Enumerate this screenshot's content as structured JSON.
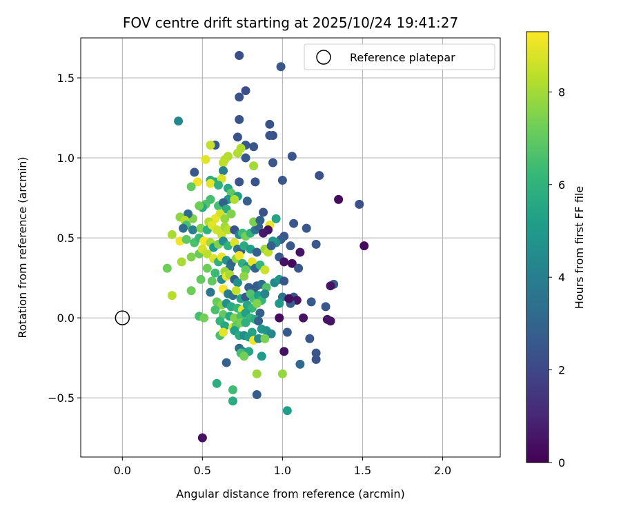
{
  "chart_data": {
    "type": "scatter",
    "title": "FOV centre drift starting at 2025/10/24 19:41:27",
    "xlabel": "Angular distance from reference (arcmin)",
    "ylabel": "Rotation from reference (arcmin)",
    "xlim": [
      -0.26,
      2.36
    ],
    "ylim": [
      -0.87,
      1.75
    ],
    "xticks": [
      0.0,
      0.5,
      1.0,
      1.5,
      2.0
    ],
    "xtick_labels": [
      "0.0",
      "0.5",
      "1.0",
      "1.5",
      "2.0"
    ],
    "yticks": [
      -0.5,
      0.0,
      0.5,
      1.0,
      1.5
    ],
    "ytick_labels": [
      "−0.5",
      "0.0",
      "0.5",
      "1.0",
      "1.5"
    ],
    "grid": true,
    "legend": {
      "position": "top-right",
      "label": "Reference platepar"
    },
    "reference_point": {
      "x": 0.0,
      "y": 0.0
    },
    "colorbar": {
      "label": "Hours from first FF file",
      "colormap": "viridis",
      "range": [
        0,
        9.3
      ],
      "ticks": [
        0,
        2,
        4,
        6,
        8
      ],
      "tick_labels": [
        "0",
        "2",
        "4",
        "6",
        "8"
      ]
    },
    "points": [
      [
        0.73,
        1.64,
        2.2
      ],
      [
        0.99,
        1.57,
        2.5
      ],
      [
        0.77,
        1.42,
        2.2
      ],
      [
        0.73,
        1.38,
        2.4
      ],
      [
        0.92,
        1.21,
        2.3
      ],
      [
        0.94,
        1.14,
        2.3
      ],
      [
        0.73,
        1.24,
        2.4
      ],
      [
        0.35,
        1.23,
        4.4
      ],
      [
        0.72,
        1.13,
        2.4
      ],
      [
        0.58,
        1.08,
        2.6
      ],
      [
        0.55,
        1.08,
        8.5
      ],
      [
        0.77,
        1.08,
        2.6
      ],
      [
        0.82,
        1.07,
        2.5
      ],
      [
        0.74,
        1.06,
        8.2
      ],
      [
        0.92,
        1.14,
        2.5
      ],
      [
        1.06,
        1.01,
        2.4
      ],
      [
        0.72,
        1.03,
        8.2
      ],
      [
        0.66,
        1.01,
        8.2
      ],
      [
        0.77,
        1.0,
        2.6
      ],
      [
        0.64,
        0.99,
        8.3
      ],
      [
        0.52,
        0.99,
        8.9
      ],
      [
        0.63,
        0.97,
        8.4
      ],
      [
        0.82,
        0.95,
        8.0
      ],
      [
        0.94,
        0.97,
        2.5
      ],
      [
        0.45,
        0.91,
        2.5
      ],
      [
        0.63,
        0.92,
        4.0
      ],
      [
        1.23,
        0.89,
        2.3
      ],
      [
        0.55,
        0.86,
        5.6
      ],
      [
        0.58,
        0.85,
        5.8
      ],
      [
        0.62,
        0.87,
        8.8
      ],
      [
        0.73,
        0.85,
        2.4
      ],
      [
        0.83,
        0.85,
        2.4
      ],
      [
        1.0,
        0.86,
        2.5
      ],
      [
        0.47,
        0.85,
        9.1
      ],
      [
        0.43,
        0.82,
        7.0
      ],
      [
        0.55,
        0.84,
        8.9
      ],
      [
        0.6,
        0.83,
        5.9
      ],
      [
        0.66,
        0.81,
        5.6
      ],
      [
        0.68,
        0.78,
        6.9
      ],
      [
        0.72,
        0.76,
        5.2
      ],
      [
        0.78,
        0.73,
        2.8
      ],
      [
        0.66,
        0.74,
        4.8
      ],
      [
        0.7,
        0.74,
        8.2
      ],
      [
        0.52,
        0.71,
        6.7
      ],
      [
        0.55,
        0.74,
        6.5
      ],
      [
        0.5,
        0.69,
        5.6
      ],
      [
        0.48,
        0.7,
        7.2
      ],
      [
        0.6,
        0.7,
        6.5
      ],
      [
        0.63,
        0.72,
        2.9
      ],
      [
        0.65,
        0.68,
        5.8
      ],
      [
        1.35,
        0.74,
        0.3
      ],
      [
        1.48,
        0.71,
        2.3
      ],
      [
        0.88,
        0.66,
        2.3
      ],
      [
        0.96,
        0.62,
        5.4
      ],
      [
        0.61,
        0.65,
        8.7
      ],
      [
        0.64,
        0.62,
        7.8
      ],
      [
        0.68,
        0.65,
        7.5
      ],
      [
        0.58,
        0.62,
        9.0
      ],
      [
        0.54,
        0.6,
        8.2
      ],
      [
        0.44,
        0.62,
        7.5
      ],
      [
        0.41,
        0.65,
        3.3
      ],
      [
        0.36,
        0.63,
        7.7
      ],
      [
        0.39,
        0.61,
        8.3
      ],
      [
        0.4,
        0.58,
        6.6
      ],
      [
        0.38,
        0.56,
        3.3
      ],
      [
        0.44,
        0.55,
        4.1
      ],
      [
        0.49,
        0.56,
        7.5
      ],
      [
        0.53,
        0.55,
        6.0
      ],
      [
        0.56,
        0.58,
        8.9
      ],
      [
        0.59,
        0.55,
        8.6
      ],
      [
        0.62,
        0.52,
        8.6
      ],
      [
        0.64,
        0.57,
        8.0
      ],
      [
        0.66,
        0.55,
        8.3
      ],
      [
        0.7,
        0.55,
        2.4
      ],
      [
        0.73,
        0.52,
        4.2
      ],
      [
        0.75,
        0.53,
        6.3
      ],
      [
        0.77,
        0.51,
        7.3
      ],
      [
        0.8,
        0.53,
        6.0
      ],
      [
        0.83,
        0.55,
        3.6
      ],
      [
        0.85,
        0.57,
        2.9
      ],
      [
        0.82,
        0.6,
        7.4
      ],
      [
        0.86,
        0.61,
        2.9
      ],
      [
        0.92,
        0.58,
        9.0
      ],
      [
        0.91,
        0.55,
        0.4
      ],
      [
        0.88,
        0.53,
        0.6
      ],
      [
        1.07,
        0.59,
        2.5
      ],
      [
        1.15,
        0.56,
        2.5
      ],
      [
        1.01,
        0.51,
        2.5
      ],
      [
        0.99,
        0.49,
        2.8
      ],
      [
        0.96,
        0.47,
        4.5
      ],
      [
        0.94,
        0.48,
        5.0
      ],
      [
        1.05,
        0.45,
        2.6
      ],
      [
        1.21,
        0.46,
        2.5
      ],
      [
        1.51,
        0.45,
        0.3
      ],
      [
        0.31,
        0.52,
        8.1
      ],
      [
        0.36,
        0.48,
        9.1
      ],
      [
        0.4,
        0.49,
        6.9
      ],
      [
        0.45,
        0.47,
        6.6
      ],
      [
        0.48,
        0.5,
        6.2
      ],
      [
        0.51,
        0.48,
        9.2
      ],
      [
        0.55,
        0.47,
        8.1
      ],
      [
        0.57,
        0.44,
        5.1
      ],
      [
        0.6,
        0.46,
        7.4
      ],
      [
        0.63,
        0.48,
        4.5
      ],
      [
        0.66,
        0.45,
        6.0
      ],
      [
        0.7,
        0.47,
        8.8
      ],
      [
        0.72,
        0.43,
        3.7
      ],
      [
        0.74,
        0.42,
        2.9
      ],
      [
        0.76,
        0.45,
        5.7
      ],
      [
        0.8,
        0.43,
        5.2
      ],
      [
        0.84,
        0.41,
        2.9
      ],
      [
        0.89,
        0.43,
        7.9
      ],
      [
        0.91,
        0.41,
        8.4
      ],
      [
        0.93,
        0.45,
        2.8
      ],
      [
        0.98,
        0.38,
        2.5
      ],
      [
        1.01,
        0.35,
        0.4
      ],
      [
        1.06,
        0.34,
        0.2
      ],
      [
        1.1,
        0.31,
        2.5
      ],
      [
        1.11,
        0.41,
        0.5
      ],
      [
        0.28,
        0.31,
        7.2
      ],
      [
        0.37,
        0.35,
        8.1
      ],
      [
        0.43,
        0.38,
        7.5
      ],
      [
        0.48,
        0.4,
        7.1
      ],
      [
        0.5,
        0.43,
        8.7
      ],
      [
        0.53,
        0.4,
        8.4
      ],
      [
        0.57,
        0.37,
        8.8
      ],
      [
        0.6,
        0.35,
        6.0
      ],
      [
        0.62,
        0.38,
        9.0
      ],
      [
        0.65,
        0.36,
        4.9
      ],
      [
        0.68,
        0.34,
        2.9
      ],
      [
        0.71,
        0.37,
        7.7
      ],
      [
        0.73,
        0.39,
        9.1
      ],
      [
        0.75,
        0.34,
        5.9
      ],
      [
        0.78,
        0.32,
        4.6
      ],
      [
        0.81,
        0.35,
        9.0
      ],
      [
        0.83,
        0.31,
        3.0
      ],
      [
        0.86,
        0.33,
        6.2
      ],
      [
        0.89,
        0.3,
        8.6
      ],
      [
        0.77,
        0.3,
        7.0
      ],
      [
        0.67,
        0.31,
        3.2
      ],
      [
        0.64,
        0.29,
        7.8
      ],
      [
        0.58,
        0.28,
        6.3
      ],
      [
        0.53,
        0.31,
        7.2
      ],
      [
        0.49,
        0.24,
        7.0
      ],
      [
        0.56,
        0.23,
        7.0
      ],
      [
        0.62,
        0.24,
        4.5
      ],
      [
        0.65,
        0.26,
        8.9
      ],
      [
        0.67,
        0.27,
        8.1
      ],
      [
        0.7,
        0.24,
        2.6
      ],
      [
        0.72,
        0.22,
        4.7
      ],
      [
        0.76,
        0.26,
        7.7
      ],
      [
        0.79,
        0.19,
        2.8
      ],
      [
        0.82,
        0.18,
        2.5
      ],
      [
        0.84,
        0.2,
        2.7
      ],
      [
        0.87,
        0.21,
        3.3
      ],
      [
        0.9,
        0.19,
        6.7
      ],
      [
        0.95,
        0.22,
        4.3
      ],
      [
        0.98,
        0.24,
        5.0
      ],
      [
        1.01,
        0.23,
        2.5
      ],
      [
        1.32,
        0.21,
        2.7
      ],
      [
        1.3,
        0.2,
        0.5
      ],
      [
        0.43,
        0.17,
        7.2
      ],
      [
        0.31,
        0.14,
        8.3
      ],
      [
        0.55,
        0.16,
        3.6
      ],
      [
        0.63,
        0.18,
        9.2
      ],
      [
        0.66,
        0.15,
        4.0
      ],
      [
        0.69,
        0.14,
        3.4
      ],
      [
        0.71,
        0.17,
        8.5
      ],
      [
        0.74,
        0.12,
        5.4
      ],
      [
        0.77,
        0.13,
        2.7
      ],
      [
        0.8,
        0.15,
        6.7
      ],
      [
        0.82,
        0.12,
        6.5
      ],
      [
        0.85,
        0.14,
        5.2
      ],
      [
        0.87,
        0.11,
        6.1
      ],
      [
        0.89,
        0.15,
        4.2
      ],
      [
        1.0,
        0.13,
        3.6
      ],
      [
        1.07,
        0.13,
        2.5
      ],
      [
        1.09,
        0.11,
        0.5
      ],
      [
        1.18,
        0.1,
        2.6
      ],
      [
        1.27,
        0.07,
        2.5
      ],
      [
        0.59,
        0.1,
        7.1
      ],
      [
        0.62,
        0.08,
        7.7
      ],
      [
        0.65,
        0.09,
        4.7
      ],
      [
        0.68,
        0.07,
        5.7
      ],
      [
        0.72,
        0.06,
        6.2
      ],
      [
        0.75,
        0.05,
        9.0
      ],
      [
        0.78,
        0.08,
        5.5
      ],
      [
        0.81,
        0.06,
        6.2
      ],
      [
        0.84,
        0.09,
        7.5
      ],
      [
        0.86,
        0.03,
        2.9
      ],
      [
        0.98,
        0.09,
        4.9
      ],
      [
        1.05,
        0.09,
        2.8
      ],
      [
        1.04,
        0.12,
        0.4
      ],
      [
        0.48,
        0.01,
        6.5
      ],
      [
        0.51,
        0.0,
        7.3
      ],
      [
        0.58,
        0.05,
        6.6
      ],
      [
        0.63,
        0.02,
        7.0
      ],
      [
        0.67,
        0.01,
        5.6
      ],
      [
        0.7,
        0.0,
        7.5
      ],
      [
        0.74,
        0.01,
        6.6
      ],
      [
        0.77,
        0.03,
        5.3
      ],
      [
        0.8,
        0.0,
        6.2
      ],
      [
        0.83,
        -0.01,
        5.8
      ],
      [
        0.85,
        -0.02,
        2.9
      ],
      [
        0.98,
        0.0,
        0.3
      ],
      [
        1.13,
        0.0,
        0.5
      ],
      [
        1.28,
        -0.01,
        0.5
      ],
      [
        1.3,
        -0.02,
        0.5
      ],
      [
        0.61,
        -0.02,
        6.1
      ],
      [
        0.64,
        -0.05,
        5.6
      ],
      [
        0.69,
        -0.06,
        9.0
      ],
      [
        0.71,
        -0.05,
        7.0
      ],
      [
        0.74,
        -0.03,
        7.3
      ],
      [
        0.77,
        -0.03,
        5.9
      ],
      [
        0.81,
        -0.09,
        5.4
      ],
      [
        0.87,
        -0.07,
        5.0
      ],
      [
        0.9,
        -0.08,
        4.8
      ],
      [
        0.93,
        -0.1,
        4.3
      ],
      [
        1.03,
        -0.09,
        2.7
      ],
      [
        1.17,
        -0.13,
        2.5
      ],
      [
        0.61,
        -0.11,
        6.6
      ],
      [
        0.63,
        -0.09,
        8.9
      ],
      [
        0.7,
        -0.08,
        5.2
      ],
      [
        0.73,
        -0.11,
        5.7
      ],
      [
        0.76,
        -0.11,
        4.6
      ],
      [
        0.79,
        -0.12,
        5.2
      ],
      [
        0.82,
        -0.14,
        9.1
      ],
      [
        0.85,
        -0.13,
        4.5
      ],
      [
        0.89,
        -0.13,
        7.4
      ],
      [
        0.73,
        -0.19,
        3.2
      ],
      [
        0.75,
        -0.21,
        4.2
      ],
      [
        0.77,
        -0.22,
        5.6
      ],
      [
        0.79,
        -0.21,
        5.5
      ],
      [
        0.74,
        -0.22,
        6.5
      ],
      [
        0.76,
        -0.24,
        7.3
      ],
      [
        0.87,
        -0.24,
        5.1
      ],
      [
        1.01,
        -0.21,
        0.4
      ],
      [
        1.21,
        -0.22,
        2.5
      ],
      [
        1.11,
        -0.29,
        3.1
      ],
      [
        1.21,
        -0.26,
        2.4
      ],
      [
        0.65,
        -0.28,
        2.9
      ],
      [
        0.84,
        -0.35,
        7.9
      ],
      [
        1.0,
        -0.35,
        7.8
      ],
      [
        0.59,
        -0.41,
        5.8
      ],
      [
        0.69,
        -0.45,
        6.4
      ],
      [
        0.84,
        -0.48,
        2.7
      ],
      [
        0.69,
        -0.52,
        5.7
      ],
      [
        1.03,
        -0.58,
        5.2
      ],
      [
        0.5,
        -0.75,
        0.4
      ]
    ]
  }
}
